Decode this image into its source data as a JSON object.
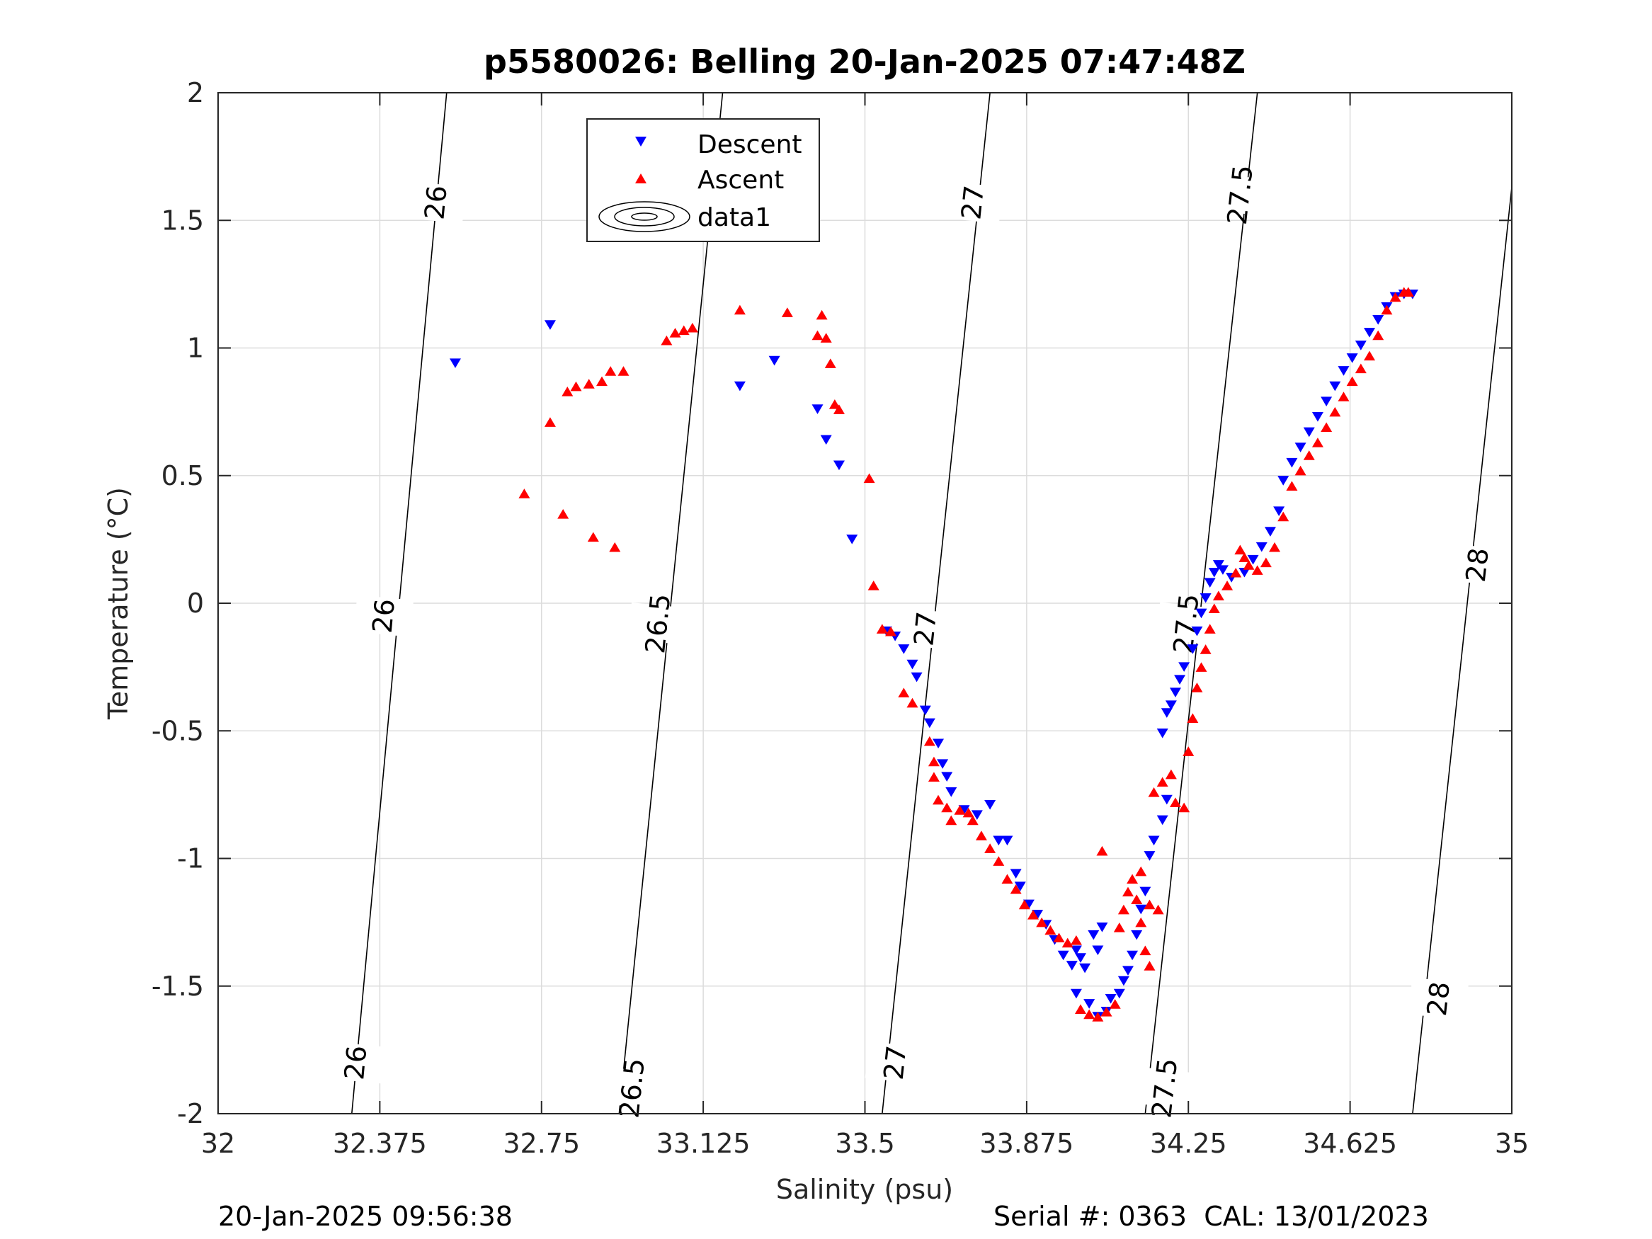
{
  "chart_data": {
    "type": "scatter",
    "title": "p5580026: Belling 20-Jan-2025 07:47:48Z",
    "xlabel": "Salinity (psu)",
    "ylabel": "Temperature (°C)",
    "xlim": [
      32,
      35
    ],
    "ylim": [
      -2,
      2
    ],
    "x_ticks": [
      32,
      32.375,
      32.75,
      33.125,
      33.5,
      33.875,
      34.25,
      34.625,
      35
    ],
    "x_tick_labels": [
      "32",
      "32.375",
      "32.75",
      "33.125",
      "33.5",
      "33.875",
      "34.25",
      "34.625",
      "35"
    ],
    "y_ticks": [
      2,
      1.5,
      1,
      0.5,
      0,
      -0.5,
      -1,
      -1.5,
      -2
    ],
    "y_tick_labels": [
      "2",
      "1.5",
      "1",
      "0.5",
      "0",
      "-0.5",
      "-1",
      "-1.5",
      "-2"
    ],
    "grid": true,
    "legend_position": "top-center",
    "legend": [
      {
        "label": "Descent",
        "marker": "triangle-down",
        "color": "#0000ff"
      },
      {
        "label": "Ascent",
        "marker": "triangle-up",
        "color": "#ff0000"
      },
      {
        "label": "data1",
        "marker": "contour",
        "color": "#000000"
      }
    ],
    "contours": [
      {
        "level": 26,
        "label": "26",
        "points": [
          [
            32.53,
            2.0
          ],
          [
            32.31,
            -2.0
          ]
        ],
        "label_positions": [
          [
            32.505,
            1.57
          ],
          [
            32.384,
            -0.05
          ],
          [
            32.319,
            -1.8
          ]
        ]
      },
      {
        "level": 26.5,
        "label": "26.5",
        "points": [
          [
            33.17,
            2.0
          ],
          [
            32.93,
            -2.0
          ]
        ],
        "label_positions": [
          [
            33.125,
            1.6
          ],
          [
            33.02,
            -0.08
          ],
          [
            32.96,
            -1.9
          ]
        ]
      },
      {
        "level": 27,
        "label": "27",
        "points": [
          [
            33.79,
            2.0
          ],
          [
            33.54,
            -2.0
          ]
        ],
        "label_positions": [
          [
            33.75,
            1.57
          ],
          [
            33.64,
            -0.1
          ],
          [
            33.57,
            -1.8
          ]
        ]
      },
      {
        "level": 27.5,
        "label": "27.5",
        "points": [
          [
            34.41,
            2.0
          ],
          [
            34.15,
            -2.0
          ]
        ],
        "label_positions": [
          [
            34.37,
            1.6
          ],
          [
            34.245,
            -0.08
          ],
          [
            34.195,
            -1.9
          ]
        ]
      },
      {
        "level": 28,
        "label": "28",
        "points": [
          [
            35.0,
            1.63
          ],
          [
            34.77,
            -2.0
          ]
        ],
        "label_positions": [
          [
            34.92,
            0.15
          ],
          [
            34.83,
            -1.55
          ]
        ]
      }
    ],
    "series": [
      {
        "name": "Descent",
        "marker": "triangle-down",
        "color": "#0000ff",
        "points": [
          [
            32.55,
            0.94
          ],
          [
            32.77,
            1.09
          ],
          [
            33.21,
            0.85
          ],
          [
            33.29,
            0.95
          ],
          [
            33.39,
            0.76
          ],
          [
            33.41,
            0.64
          ],
          [
            33.44,
            0.54
          ],
          [
            33.47,
            0.25
          ],
          [
            33.55,
            -0.11
          ],
          [
            33.57,
            -0.13
          ],
          [
            33.59,
            -0.18
          ],
          [
            33.61,
            -0.24
          ],
          [
            33.62,
            -0.29
          ],
          [
            33.64,
            -0.42
          ],
          [
            33.65,
            -0.47
          ],
          [
            33.67,
            -0.55
          ],
          [
            33.68,
            -0.63
          ],
          [
            33.69,
            -0.68
          ],
          [
            33.7,
            -0.74
          ],
          [
            33.73,
            -0.81
          ],
          [
            33.76,
            -0.83
          ],
          [
            33.79,
            -0.79
          ],
          [
            33.81,
            -0.93
          ],
          [
            33.83,
            -0.93
          ],
          [
            33.85,
            -1.06
          ],
          [
            33.86,
            -1.11
          ],
          [
            33.88,
            -1.18
          ],
          [
            33.9,
            -1.22
          ],
          [
            33.92,
            -1.26
          ],
          [
            33.94,
            -1.32
          ],
          [
            33.96,
            -1.38
          ],
          [
            33.98,
            -1.42
          ],
          [
            33.99,
            -1.36
          ],
          [
            34.0,
            -1.39
          ],
          [
            34.01,
            -1.43
          ],
          [
            33.99,
            -1.53
          ],
          [
            34.02,
            -1.57
          ],
          [
            34.04,
            -1.62
          ],
          [
            34.06,
            -1.6
          ],
          [
            34.03,
            -1.3
          ],
          [
            34.04,
            -1.36
          ],
          [
            34.05,
            -1.27
          ],
          [
            34.07,
            -1.55
          ],
          [
            34.09,
            -1.53
          ],
          [
            34.1,
            -1.48
          ],
          [
            34.11,
            -1.44
          ],
          [
            34.12,
            -1.38
          ],
          [
            34.13,
            -1.3
          ],
          [
            34.14,
            -1.2
          ],
          [
            34.15,
            -1.13
          ],
          [
            34.16,
            -0.99
          ],
          [
            34.17,
            -0.93
          ],
          [
            34.19,
            -0.85
          ],
          [
            34.2,
            -0.77
          ],
          [
            34.19,
            -0.51
          ],
          [
            34.2,
            -0.43
          ],
          [
            34.21,
            -0.4
          ],
          [
            34.22,
            -0.35
          ],
          [
            34.23,
            -0.3
          ],
          [
            34.24,
            -0.25
          ],
          [
            34.26,
            -0.18
          ],
          [
            34.27,
            -0.11
          ],
          [
            34.28,
            -0.04
          ],
          [
            34.29,
            0.02
          ],
          [
            34.3,
            0.08
          ],
          [
            34.31,
            0.12
          ],
          [
            34.32,
            0.15
          ],
          [
            34.33,
            0.13
          ],
          [
            34.35,
            0.1
          ],
          [
            34.38,
            0.12
          ],
          [
            34.4,
            0.17
          ],
          [
            34.42,
            0.22
          ],
          [
            34.44,
            0.28
          ],
          [
            34.46,
            0.36
          ],
          [
            34.47,
            0.48
          ],
          [
            34.49,
            0.55
          ],
          [
            34.51,
            0.61
          ],
          [
            34.53,
            0.67
          ],
          [
            34.55,
            0.73
          ],
          [
            34.57,
            0.79
          ],
          [
            34.59,
            0.85
          ],
          [
            34.61,
            0.91
          ],
          [
            34.63,
            0.96
          ],
          [
            34.65,
            1.01
          ],
          [
            34.67,
            1.06
          ],
          [
            34.69,
            1.11
          ],
          [
            34.71,
            1.16
          ],
          [
            34.73,
            1.2
          ],
          [
            34.75,
            1.21
          ],
          [
            34.77,
            1.21
          ]
        ]
      },
      {
        "name": "Ascent",
        "marker": "triangle-up",
        "color": "#ff0000",
        "points": [
          [
            32.71,
            0.43
          ],
          [
            32.77,
            0.71
          ],
          [
            32.8,
            0.35
          ],
          [
            32.81,
            0.83
          ],
          [
            32.83,
            0.85
          ],
          [
            32.86,
            0.86
          ],
          [
            32.87,
            0.26
          ],
          [
            32.89,
            0.87
          ],
          [
            32.91,
            0.91
          ],
          [
            32.92,
            0.22
          ],
          [
            32.94,
            0.91
          ],
          [
            33.04,
            1.03
          ],
          [
            33.06,
            1.06
          ],
          [
            33.08,
            1.07
          ],
          [
            33.1,
            1.08
          ],
          [
            33.21,
            1.15
          ],
          [
            33.32,
            1.14
          ],
          [
            33.4,
            1.13
          ],
          [
            33.39,
            1.05
          ],
          [
            33.41,
            1.04
          ],
          [
            33.42,
            0.94
          ],
          [
            33.43,
            0.78
          ],
          [
            33.44,
            0.76
          ],
          [
            33.51,
            0.49
          ],
          [
            33.52,
            0.07
          ],
          [
            33.54,
            -0.1
          ],
          [
            33.56,
            -0.11
          ],
          [
            33.59,
            -0.35
          ],
          [
            33.61,
            -0.39
          ],
          [
            33.65,
            -0.54
          ],
          [
            33.66,
            -0.62
          ],
          [
            33.66,
            -0.68
          ],
          [
            33.67,
            -0.77
          ],
          [
            33.69,
            -0.8
          ],
          [
            33.7,
            -0.85
          ],
          [
            33.72,
            -0.81
          ],
          [
            33.74,
            -0.82
          ],
          [
            33.75,
            -0.85
          ],
          [
            33.77,
            -0.91
          ],
          [
            33.79,
            -0.96
          ],
          [
            33.81,
            -1.01
          ],
          [
            33.83,
            -1.08
          ],
          [
            33.85,
            -1.12
          ],
          [
            33.87,
            -1.18
          ],
          [
            33.89,
            -1.22
          ],
          [
            33.91,
            -1.25
          ],
          [
            33.93,
            -1.28
          ],
          [
            33.95,
            -1.31
          ],
          [
            33.97,
            -1.33
          ],
          [
            33.99,
            -1.32
          ],
          [
            34.0,
            -1.59
          ],
          [
            34.02,
            -1.61
          ],
          [
            34.04,
            -1.62
          ],
          [
            34.05,
            -0.97
          ],
          [
            34.06,
            -1.6
          ],
          [
            34.08,
            -1.57
          ],
          [
            34.09,
            -1.27
          ],
          [
            34.1,
            -1.2
          ],
          [
            34.11,
            -1.13
          ],
          [
            34.12,
            -1.08
          ],
          [
            34.13,
            -1.16
          ],
          [
            34.14,
            -1.25
          ],
          [
            34.15,
            -1.36
          ],
          [
            34.16,
            -1.42
          ],
          [
            34.14,
            -1.05
          ],
          [
            34.16,
            -1.18
          ],
          [
            34.18,
            -1.2
          ],
          [
            34.17,
            -0.74
          ],
          [
            34.19,
            -0.7
          ],
          [
            34.21,
            -0.67
          ],
          [
            34.22,
            -0.78
          ],
          [
            34.24,
            -0.8
          ],
          [
            34.25,
            -0.58
          ],
          [
            34.26,
            -0.45
          ],
          [
            34.27,
            -0.33
          ],
          [
            34.28,
            -0.25
          ],
          [
            34.29,
            -0.18
          ],
          [
            34.3,
            -0.1
          ],
          [
            34.31,
            -0.02
          ],
          [
            34.32,
            0.03
          ],
          [
            34.34,
            0.07
          ],
          [
            34.36,
            0.12
          ],
          [
            34.37,
            0.21
          ],
          [
            34.38,
            0.18
          ],
          [
            34.39,
            0.15
          ],
          [
            34.41,
            0.13
          ],
          [
            34.43,
            0.16
          ],
          [
            34.45,
            0.22
          ],
          [
            34.47,
            0.34
          ],
          [
            34.49,
            0.46
          ],
          [
            34.51,
            0.52
          ],
          [
            34.53,
            0.58
          ],
          [
            34.55,
            0.63
          ],
          [
            34.57,
            0.69
          ],
          [
            34.59,
            0.75
          ],
          [
            34.61,
            0.81
          ],
          [
            34.63,
            0.87
          ],
          [
            34.65,
            0.92
          ],
          [
            34.67,
            0.97
          ],
          [
            34.69,
            1.05
          ],
          [
            34.71,
            1.15
          ],
          [
            34.73,
            1.2
          ],
          [
            34.75,
            1.22
          ],
          [
            34.76,
            1.22
          ]
        ]
      }
    ]
  },
  "footer": {
    "timestamp": "20-Jan-2025 09:56:38",
    "serial": "Serial #: 0363  CAL: 13/01/2023"
  }
}
